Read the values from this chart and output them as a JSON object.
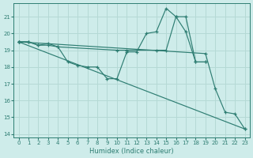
{
  "xlabel": "Humidex (Indice chaleur)",
  "xlim": [
    -0.5,
    23.5
  ],
  "ylim": [
    13.8,
    21.8
  ],
  "yticks": [
    14,
    15,
    16,
    17,
    18,
    19,
    20,
    21
  ],
  "xticks": [
    0,
    1,
    2,
    3,
    4,
    5,
    6,
    7,
    8,
    9,
    10,
    11,
    12,
    13,
    14,
    15,
    16,
    17,
    18,
    19,
    20,
    21,
    22,
    23
  ],
  "bg_color": "#ceecea",
  "grid_color": "#b5d9d5",
  "line_color": "#2e7d72",
  "series": [
    {
      "x": [
        0,
        1,
        2,
        3,
        4,
        5,
        6,
        7,
        8,
        9,
        10,
        11,
        12,
        13,
        14,
        15,
        16,
        17,
        18,
        19
      ],
      "y": [
        19.5,
        19.5,
        19.3,
        19.4,
        19.2,
        18.3,
        18.1,
        18.0,
        18.0,
        17.3,
        17.3,
        18.9,
        18.9,
        20.0,
        20.1,
        21.5,
        21.0,
        20.1,
        18.3,
        18.3
      ]
    },
    {
      "x": [
        0,
        1,
        2,
        3,
        4,
        10,
        11,
        14,
        15,
        16,
        17,
        18,
        19
      ],
      "y": [
        19.5,
        19.5,
        19.3,
        19.3,
        19.2,
        19.0,
        19.0,
        19.0,
        19.0,
        21.0,
        21.0,
        18.3,
        18.3
      ]
    },
    {
      "x": [
        0,
        23
      ],
      "y": [
        19.5,
        14.3
      ]
    },
    {
      "comment": "fan line: from (0,19.5) descending, through (19,18.8), sharp drop to (20,16.7),(21,15.3),(22,15.2),(23,14.3)",
      "x": [
        0,
        19,
        20,
        21,
        22,
        23
      ],
      "y": [
        19.5,
        18.8,
        16.7,
        15.3,
        15.2,
        14.3
      ]
    }
  ]
}
